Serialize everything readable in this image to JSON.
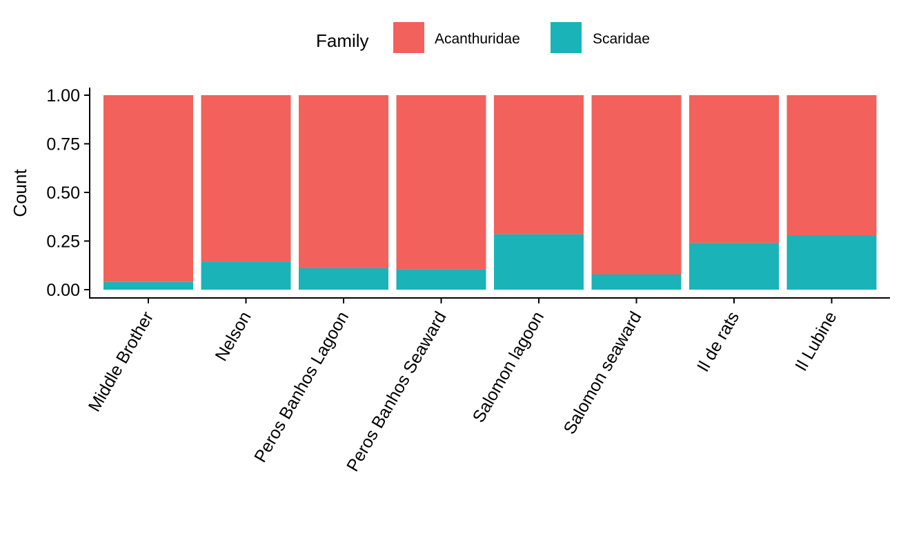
{
  "chart_data": {
    "type": "bar",
    "stacked": true,
    "position": "fill",
    "title": "",
    "xlabel": "",
    "ylabel": "Count",
    "ylim": [
      0,
      1
    ],
    "yticks": [
      "0.00",
      "0.25",
      "0.50",
      "0.75",
      "1.00"
    ],
    "ytick_values": [
      0,
      0.25,
      0.5,
      0.75,
      1.0
    ],
    "categories": [
      "Middle Brother",
      "Nelson",
      "Peros Banhos Lagoon",
      "Peros Banhos Seaward",
      "Salomon lagoon",
      "Salomon seaward",
      "Il de rats",
      "Il Lubine"
    ],
    "series": [
      {
        "name": "Scaridae",
        "color": "#1AB3B8",
        "values": [
          0.04,
          0.145,
          0.11,
          0.105,
          0.285,
          0.078,
          0.24,
          0.28
        ]
      },
      {
        "name": "Acanthuridae",
        "color": "#F2615C",
        "values": [
          0.96,
          0.855,
          0.89,
          0.895,
          0.715,
          0.922,
          0.76,
          0.72
        ]
      }
    ],
    "legend": {
      "title": "Family",
      "position": "top",
      "items": [
        "Acanthuridae",
        "Scaridae"
      ]
    },
    "grid": false
  }
}
